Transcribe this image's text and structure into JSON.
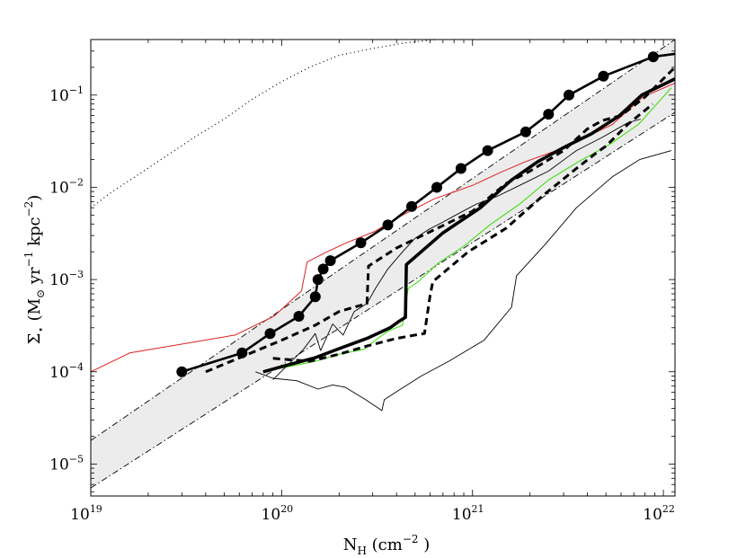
{
  "chart_data": {
    "type": "line",
    "title": "",
    "x_scale": "log",
    "y_scale": "log",
    "xlim": [
      1e+19,
      1.15e+22
    ],
    "ylim": [
      4.5e-06,
      0.4
    ],
    "grid": false,
    "xlabel": {
      "base": "N",
      "sub": "H",
      "unit_open": " (cm",
      "unit_exp": "−2",
      "unit_close": " )"
    },
    "ylabel": {
      "base": "Σ",
      "sub": "⋆",
      "unit_open": " (M",
      "unit_sun": "⊙",
      "unit_mid1": " yr",
      "exp1": "−1",
      "unit_mid2": " kpc",
      "exp2": "−2",
      "unit_close": ")"
    },
    "x_ticks": [
      {
        "value": 1e+19,
        "base": "10",
        "exp": "19"
      },
      {
        "value": 1e+20,
        "base": "10",
        "exp": "20"
      },
      {
        "value": 1e+21,
        "base": "10",
        "exp": "21"
      },
      {
        "value": 1e+22,
        "base": "10",
        "exp": "22"
      }
    ],
    "y_ticks": [
      {
        "value": 1e-05,
        "base": "10",
        "exp": "−5"
      },
      {
        "value": 0.0001,
        "base": "10",
        "exp": "−4"
      },
      {
        "value": 0.001,
        "base": "10",
        "exp": "−3"
      },
      {
        "value": 0.01,
        "base": "10",
        "exp": "−2"
      },
      {
        "value": 0.1,
        "base": "10",
        "exp": "−1"
      }
    ],
    "colors": {
      "band": "#ececec",
      "black": "#000000",
      "red": "#e02020",
      "green": "#33dd00"
    },
    "band": {
      "x": [
        1e+19,
        1.15e+22
      ],
      "upper": [
        1.8e-05,
        0.4
      ],
      "lower": [
        5.5e-06,
        0.065
      ]
    },
    "series": [
      {
        "style": "dotted",
        "x": [
          1e+19,
          1.3e+19,
          1.8e+19,
          2.5e+19,
          3.5e+19,
          5e+19,
          7e+19,
          1e+20,
          1.4e+20,
          2e+20,
          3e+20,
          4.5e+20,
          6.5e+20
        ],
        "y": [
          0.006,
          0.009,
          0.014,
          0.022,
          0.035,
          0.055,
          0.09,
          0.14,
          0.2,
          0.27,
          0.32,
          0.37,
          0.4
        ]
      },
      {
        "style": "thin-red",
        "x": [
          1e+19,
          1.6e+19,
          5.7e+19,
          9.1e+19,
          1.27e+20,
          1.36e+20,
          1.73e+20,
          2.18e+20,
          3.05e+20,
          4.3e+20,
          6.3e+20,
          1e+21,
          1.4e+21,
          1.9e+21,
          2.6e+21,
          3.7e+21,
          5.4e+21,
          7.8e+21,
          1.15e+22
        ],
        "y": [
          0.0001,
          0.00016,
          0.00025,
          0.0004,
          0.00075,
          0.00155,
          0.002,
          0.0025,
          0.0033,
          0.005,
          0.0075,
          0.0105,
          0.0145,
          0.019,
          0.024,
          0.033,
          0.048,
          0.095,
          0.135
        ]
      },
      {
        "style": "thin-green",
        "x": [
          1e+20,
          1.5e+20,
          2e+20,
          2.7e+20,
          3.1e+20,
          3.6e+20,
          4.3e+20,
          4.6e+20,
          5.2e+20,
          6.6e+20,
          9e+20,
          1.25e+21,
          1.75e+21,
          2.5e+21,
          3.6e+21,
          5.2e+21,
          7.4e+21,
          1.1e+22
        ],
        "y": [
          0.00011,
          0.00013,
          0.000155,
          0.000175,
          0.00022,
          0.000275,
          0.00032,
          0.0008,
          0.00095,
          0.0015,
          0.0023,
          0.004,
          0.0065,
          0.012,
          0.019,
          0.029,
          0.048,
          0.12
        ]
      },
      {
        "style": "thin-contour",
        "x": [
          7.3e+19,
          9e+19,
          1.2e+20,
          1.55e+20,
          1.85e+20,
          2.15e+20,
          2.75e+20,
          3.35e+20,
          3.45e+20,
          4.2e+20,
          5.4e+20,
          7.5e+20,
          1.15e+21,
          1.6e+21,
          1.7e+21,
          2.4e+21,
          3.5e+21,
          5.4e+21,
          7.5e+21,
          1.1e+22
        ],
        "y": [
          0.0001,
          8.5e-05,
          8e-05,
          6.5e-05,
          7.2e-05,
          6.8e-05,
          5e-05,
          3.8e-05,
          5e-05,
          6.5e-05,
          9e-05,
          0.00013,
          0.00022,
          0.0005,
          0.0011,
          0.0024,
          0.006,
          0.013,
          0.02,
          0.025
        ]
      },
      {
        "style": "thin-contour",
        "x": [
          9e+19,
          1.3e+20,
          1.5e+20,
          1.6e+20,
          1.85e+20,
          2.1e+20,
          2.4e+20,
          2.8e+20,
          3.1e+20,
          3.6e+20,
          4.3e+20,
          5e+20,
          5.9e+20,
          7e+20,
          8.6e+20,
          1.05e+21,
          1.35e+21,
          1.85e+21,
          2.5e+21,
          3.5e+21,
          4.8e+21,
          6.5e+21,
          7.6e+21
        ],
        "y": [
          8.2e-05,
          0.000175,
          0.00026,
          0.00017,
          0.00033,
          0.00025,
          0.00045,
          0.00055,
          0.0008,
          0.0013,
          0.002,
          0.0028,
          0.0035,
          0.0042,
          0.0053,
          0.0066,
          0.008,
          0.011,
          0.015,
          0.025,
          0.035,
          0.05,
          0.055
        ]
      },
      {
        "style": "thick-dashed",
        "x": [
          4e+19,
          1e+20,
          1.5e+20,
          2e+20,
          2.8e+20,
          2.85e+20,
          4e+20,
          6e+20,
          1e+21,
          1.5e+21,
          2e+21,
          3e+21,
          4e+21,
          4.8e+21,
          6e+21,
          8e+21,
          1.15e+22
        ],
        "y": [
          0.0001,
          0.00022,
          0.00032,
          0.00045,
          0.00055,
          0.0014,
          0.0022,
          0.0033,
          0.0055,
          0.011,
          0.015,
          0.025,
          0.043,
          0.053,
          0.06,
          0.095,
          0.2
        ]
      },
      {
        "style": "thick-dashed",
        "x": [
          9e+19,
          1.4e+20,
          2e+20,
          2.8e+20,
          4e+20,
          5e+20,
          5.6e+20,
          6e+20,
          6.2e+20,
          9.5e+20,
          1.5e+21,
          2.4e+21,
          3.5e+21,
          4.5e+21,
          5e+21,
          6.5e+21,
          8.8e+21
        ],
        "y": [
          0.00014,
          0.00013,
          0.000155,
          0.00019,
          0.00023,
          0.00025,
          0.00026,
          0.00068,
          0.00095,
          0.002,
          0.0036,
          0.0085,
          0.016,
          0.024,
          0.028,
          0.048,
          0.08
        ]
      },
      {
        "style": "thick-solid",
        "x": [
          8e+19,
          1.1e+20,
          1.5e+20,
          2e+20,
          2.8e+20,
          3.7e+20,
          4.1e+20,
          4.45e+20,
          4.5e+20,
          7e+20,
          1.1e+21,
          1.6e+21,
          2.2e+21,
          3e+21,
          4.2e+21,
          5.9e+21,
          7.7e+21,
          1.15e+22
        ],
        "y": [
          0.0001,
          0.00012,
          0.000142,
          0.000178,
          0.00023,
          0.0003,
          0.00035,
          0.00039,
          0.00145,
          0.0032,
          0.006,
          0.012,
          0.019,
          0.027,
          0.038,
          0.06,
          0.1,
          0.15
        ]
      },
      {
        "style": "thick-markers",
        "x": [
          3e+19,
          6.2e+19,
          8.7e+19,
          1.23e+20,
          1.5e+20,
          1.55e+20,
          1.65e+20,
          1.8e+20,
          2.6e+20,
          3.6e+20,
          4.8e+20,
          6.5e+20,
          8.7e+20,
          1.2e+21,
          1.9e+21,
          2.5e+21,
          3.2e+21,
          4.85e+21,
          8.85e+21,
          1.15e+22
        ],
        "y": [
          0.0001,
          0.00016,
          0.00026,
          0.0004,
          0.00065,
          0.001,
          0.0013,
          0.0016,
          0.0025,
          0.0039,
          0.0062,
          0.01,
          0.016,
          0.025,
          0.04,
          0.062,
          0.1,
          0.16,
          0.26,
          0.28
        ],
        "markers": true
      }
    ]
  }
}
